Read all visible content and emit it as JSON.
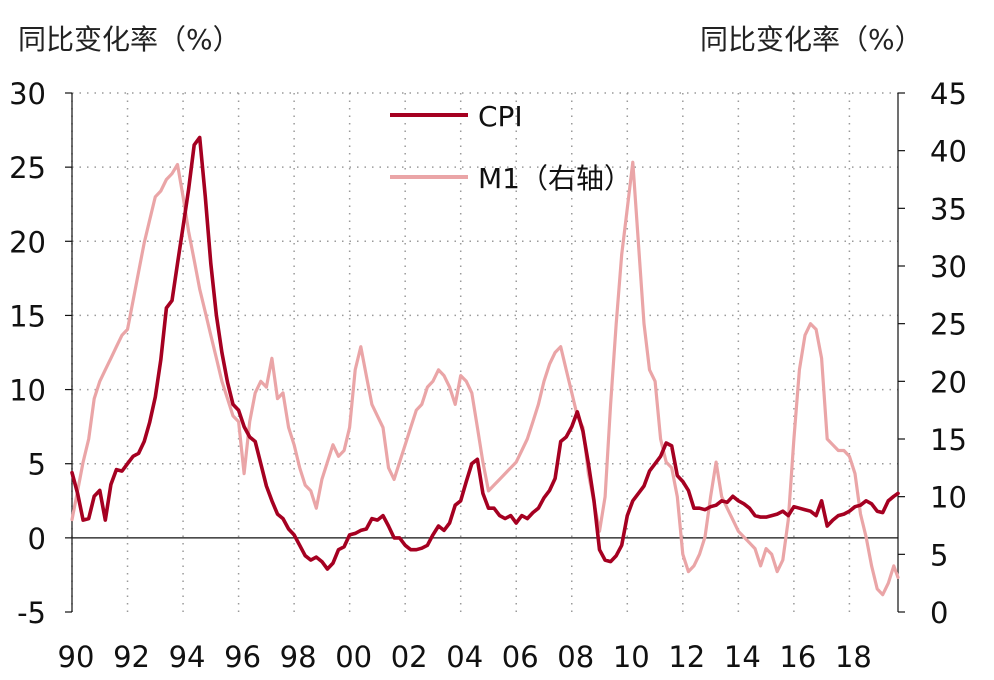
{
  "left_unit_label": "同比变化率（%）",
  "right_unit_label": "同比变化率（%）",
  "colors": {
    "cpi": "#a50021",
    "m1": "#eaa5a7",
    "grid": "#9a9a9a",
    "axis": "#111111"
  },
  "chart_data": {
    "type": "line",
    "title": "",
    "xlabel": "",
    "ylabel_left": "同比变化率（%）",
    "ylabel_right": "同比变化率（%）",
    "x_tick_labels": [
      "90",
      "92",
      "94",
      "96",
      "98",
      "00",
      "02",
      "04",
      "06",
      "08",
      "10",
      "12",
      "14",
      "16",
      "18"
    ],
    "x_tick_years": [
      1990,
      1992,
      1994,
      1996,
      1998,
      2000,
      2002,
      2004,
      2006,
      2008,
      2010,
      2012,
      2014,
      2016,
      2018
    ],
    "xlim": [
      1990.0,
      2019.75
    ],
    "y_left_ticks": [
      -5,
      0,
      5,
      10,
      15,
      20,
      25,
      30
    ],
    "y_left_lim": [
      -5,
      30
    ],
    "y_right_ticks": [
      0,
      5,
      10,
      15,
      20,
      25,
      30,
      35,
      40,
      45
    ],
    "y_right_lim": [
      0,
      45
    ],
    "grid": true,
    "legend_position": "top-center",
    "series": [
      {
        "name": "CPI",
        "axis": "left",
        "x": [
          1990.0,
          1990.2,
          1990.4,
          1990.6,
          1990.8,
          1991.0,
          1991.2,
          1991.4,
          1991.6,
          1991.8,
          1992.0,
          1992.2,
          1992.4,
          1992.6,
          1992.8,
          1993.0,
          1993.2,
          1993.4,
          1993.6,
          1993.8,
          1994.0,
          1994.2,
          1994.4,
          1994.6,
          1994.8,
          1995.0,
          1995.2,
          1995.4,
          1995.6,
          1995.8,
          1996.0,
          1996.2,
          1996.4,
          1996.6,
          1996.8,
          1997.0,
          1997.2,
          1997.4,
          1997.6,
          1997.8,
          1998.0,
          1998.2,
          1998.4,
          1998.6,
          1998.8,
          1999.0,
          1999.2,
          1999.4,
          1999.6,
          1999.8,
          2000.0,
          2000.2,
          2000.4,
          2000.6,
          2000.8,
          2001.0,
          2001.2,
          2001.4,
          2001.6,
          2001.8,
          2002.0,
          2002.2,
          2002.4,
          2002.6,
          2002.8,
          2003.0,
          2003.2,
          2003.4,
          2003.6,
          2003.8,
          2004.0,
          2004.2,
          2004.4,
          2004.6,
          2004.8,
          2005.0,
          2005.2,
          2005.4,
          2005.6,
          2005.8,
          2006.0,
          2006.2,
          2006.4,
          2006.6,
          2006.8,
          2007.0,
          2007.2,
          2007.4,
          2007.6,
          2007.8,
          2008.0,
          2008.2,
          2008.4,
          2008.6,
          2008.8,
          2009.0,
          2009.2,
          2009.4,
          2009.6,
          2009.8,
          2010.0,
          2010.2,
          2010.4,
          2010.6,
          2010.8,
          2011.0,
          2011.2,
          2011.4,
          2011.6,
          2011.8,
          2012.0,
          2012.2,
          2012.4,
          2012.6,
          2012.8,
          2013.0,
          2013.2,
          2013.4,
          2013.6,
          2013.8,
          2014.0,
          2014.2,
          2014.4,
          2014.6,
          2014.8,
          2015.0,
          2015.2,
          2015.4,
          2015.6,
          2015.8,
          2016.0,
          2016.2,
          2016.4,
          2016.6,
          2016.8,
          2017.0,
          2017.2,
          2017.4,
          2017.6,
          2017.8,
          2018.0,
          2018.2,
          2018.4,
          2018.6,
          2018.8,
          2019.0,
          2019.2,
          2019.4,
          2019.6,
          2019.75
        ],
        "values": [
          4.4,
          3.0,
          1.2,
          1.3,
          2.8,
          3.2,
          1.2,
          3.6,
          4.6,
          4.5,
          5.0,
          5.5,
          5.7,
          6.5,
          7.8,
          9.5,
          12.0,
          15.5,
          16.0,
          18.5,
          21.0,
          23.5,
          26.5,
          27.0,
          23.0,
          18.5,
          15.0,
          12.5,
          10.5,
          9.0,
          8.6,
          7.5,
          6.8,
          6.5,
          5.0,
          3.5,
          2.5,
          1.6,
          1.3,
          0.6,
          0.2,
          -0.5,
          -1.2,
          -1.5,
          -1.3,
          -1.6,
          -2.1,
          -1.7,
          -0.8,
          -0.6,
          0.2,
          0.3,
          0.5,
          0.6,
          1.3,
          1.2,
          1.5,
          0.8,
          0.0,
          0.0,
          -0.5,
          -0.8,
          -0.8,
          -0.7,
          -0.5,
          0.2,
          0.8,
          0.5,
          1.0,
          2.2,
          2.5,
          3.8,
          5.0,
          5.3,
          3.0,
          2.0,
          2.0,
          1.5,
          1.3,
          1.5,
          1.0,
          1.5,
          1.3,
          1.7,
          2.0,
          2.7,
          3.2,
          4.0,
          6.5,
          6.8,
          7.5,
          8.5,
          7.2,
          5.0,
          2.5,
          -0.8,
          -1.5,
          -1.6,
          -1.2,
          -0.5,
          1.5,
          2.5,
          3.0,
          3.5,
          4.5,
          5.0,
          5.5,
          6.4,
          6.2,
          4.2,
          3.8,
          3.2,
          2.0,
          2.0,
          1.9,
          2.1,
          2.2,
          2.5,
          2.4,
          2.8,
          2.5,
          2.3,
          2.0,
          1.5,
          1.4,
          1.4,
          1.5,
          1.6,
          1.8,
          1.5,
          2.1,
          2.0,
          1.9,
          1.8,
          1.5,
          2.5,
          0.8,
          1.2,
          1.5,
          1.6,
          1.8,
          2.1,
          2.2,
          2.5,
          2.3,
          1.8,
          1.7,
          2.5,
          2.8,
          3.0
        ]
      },
      {
        "name": "M1（右轴）",
        "axis": "right",
        "x": [
          1990.0,
          1990.2,
          1990.4,
          1990.6,
          1990.8,
          1991.0,
          1991.2,
          1991.4,
          1991.6,
          1991.8,
          1992.0,
          1992.2,
          1992.4,
          1992.6,
          1992.8,
          1993.0,
          1993.2,
          1993.4,
          1993.6,
          1993.8,
          1994.0,
          1994.2,
          1994.4,
          1994.6,
          1994.8,
          1995.0,
          1995.2,
          1995.4,
          1995.6,
          1995.8,
          1996.0,
          1996.2,
          1996.4,
          1996.6,
          1996.8,
          1997.0,
          1997.2,
          1997.4,
          1997.6,
          1997.8,
          1998.0,
          1998.2,
          1998.4,
          1998.6,
          1998.8,
          1999.0,
          1999.2,
          1999.4,
          1999.6,
          1999.8,
          2000.0,
          2000.2,
          2000.4,
          2000.6,
          2000.8,
          2001.0,
          2001.2,
          2001.4,
          2001.6,
          2001.8,
          2002.0,
          2002.2,
          2002.4,
          2002.6,
          2002.8,
          2003.0,
          2003.2,
          2003.4,
          2003.6,
          2003.8,
          2004.0,
          2004.2,
          2004.4,
          2004.6,
          2004.8,
          2005.0,
          2005.2,
          2005.4,
          2005.6,
          2005.8,
          2006.0,
          2006.2,
          2006.4,
          2006.6,
          2006.8,
          2007.0,
          2007.2,
          2007.4,
          2007.6,
          2007.8,
          2008.0,
          2008.2,
          2008.4,
          2008.6,
          2008.8,
          2009.0,
          2009.2,
          2009.4,
          2009.6,
          2009.8,
          2010.0,
          2010.2,
          2010.4,
          2010.6,
          2010.8,
          2011.0,
          2011.2,
          2011.4,
          2011.6,
          2011.8,
          2012.0,
          2012.2,
          2012.4,
          2012.6,
          2012.8,
          2013.0,
          2013.2,
          2013.4,
          2013.6,
          2013.8,
          2014.0,
          2014.2,
          2014.4,
          2014.6,
          2014.8,
          2015.0,
          2015.2,
          2015.4,
          2015.6,
          2015.8,
          2016.0,
          2016.2,
          2016.4,
          2016.6,
          2016.8,
          2017.0,
          2017.2,
          2017.4,
          2017.6,
          2017.8,
          2018.0,
          2018.2,
          2018.4,
          2018.6,
          2018.8,
          2019.0,
          2019.2,
          2019.4,
          2019.6,
          2019.75
        ],
        "values": [
          8.0,
          10.5,
          13.0,
          15.0,
          18.5,
          20.0,
          21.0,
          22.0,
          23.0,
          24.0,
          24.5,
          27.0,
          29.5,
          32.0,
          34.0,
          36.0,
          36.5,
          37.5,
          38.0,
          38.8,
          36.0,
          33.0,
          30.5,
          28.0,
          26.0,
          24.0,
          22.0,
          20.0,
          18.5,
          17.0,
          16.5,
          12.0,
          16.5,
          19.0,
          20.0,
          19.5,
          22.0,
          18.5,
          19.0,
          16.0,
          14.5,
          12.5,
          11.0,
          10.5,
          9.0,
          11.5,
          13.0,
          14.5,
          13.5,
          14.0,
          16.0,
          21.0,
          23.0,
          20.5,
          18.0,
          17.0,
          16.0,
          12.5,
          11.5,
          13.0,
          14.5,
          16.0,
          17.5,
          18.0,
          19.5,
          20.0,
          21.0,
          20.5,
          19.5,
          18.0,
          20.5,
          20.0,
          19.0,
          16.0,
          13.0,
          10.5,
          11.0,
          11.5,
          12.0,
          12.5,
          13.0,
          14.0,
          15.0,
          16.5,
          18.0,
          20.0,
          21.5,
          22.5,
          23.0,
          21.0,
          19.0,
          17.0,
          16.0,
          12.0,
          9.5,
          7.0,
          10.0,
          18.0,
          25.0,
          31.0,
          35.0,
          39.0,
          32.0,
          25.0,
          21.0,
          20.0,
          15.0,
          13.0,
          12.5,
          10.0,
          5.0,
          3.5,
          4.0,
          5.0,
          6.5,
          10.0,
          13.0,
          10.0,
          9.0,
          8.0,
          7.0,
          6.5,
          6.0,
          5.5,
          4.0,
          5.5,
          5.0,
          3.5,
          4.5,
          8.0,
          15.0,
          21.0,
          24.0,
          25.0,
          24.5,
          22.0,
          15.0,
          14.5,
          14.0,
          14.0,
          13.5,
          12.0,
          8.5,
          6.5,
          4.0,
          2.0,
          1.5,
          2.5,
          4.0,
          3.0
        ]
      }
    ]
  }
}
